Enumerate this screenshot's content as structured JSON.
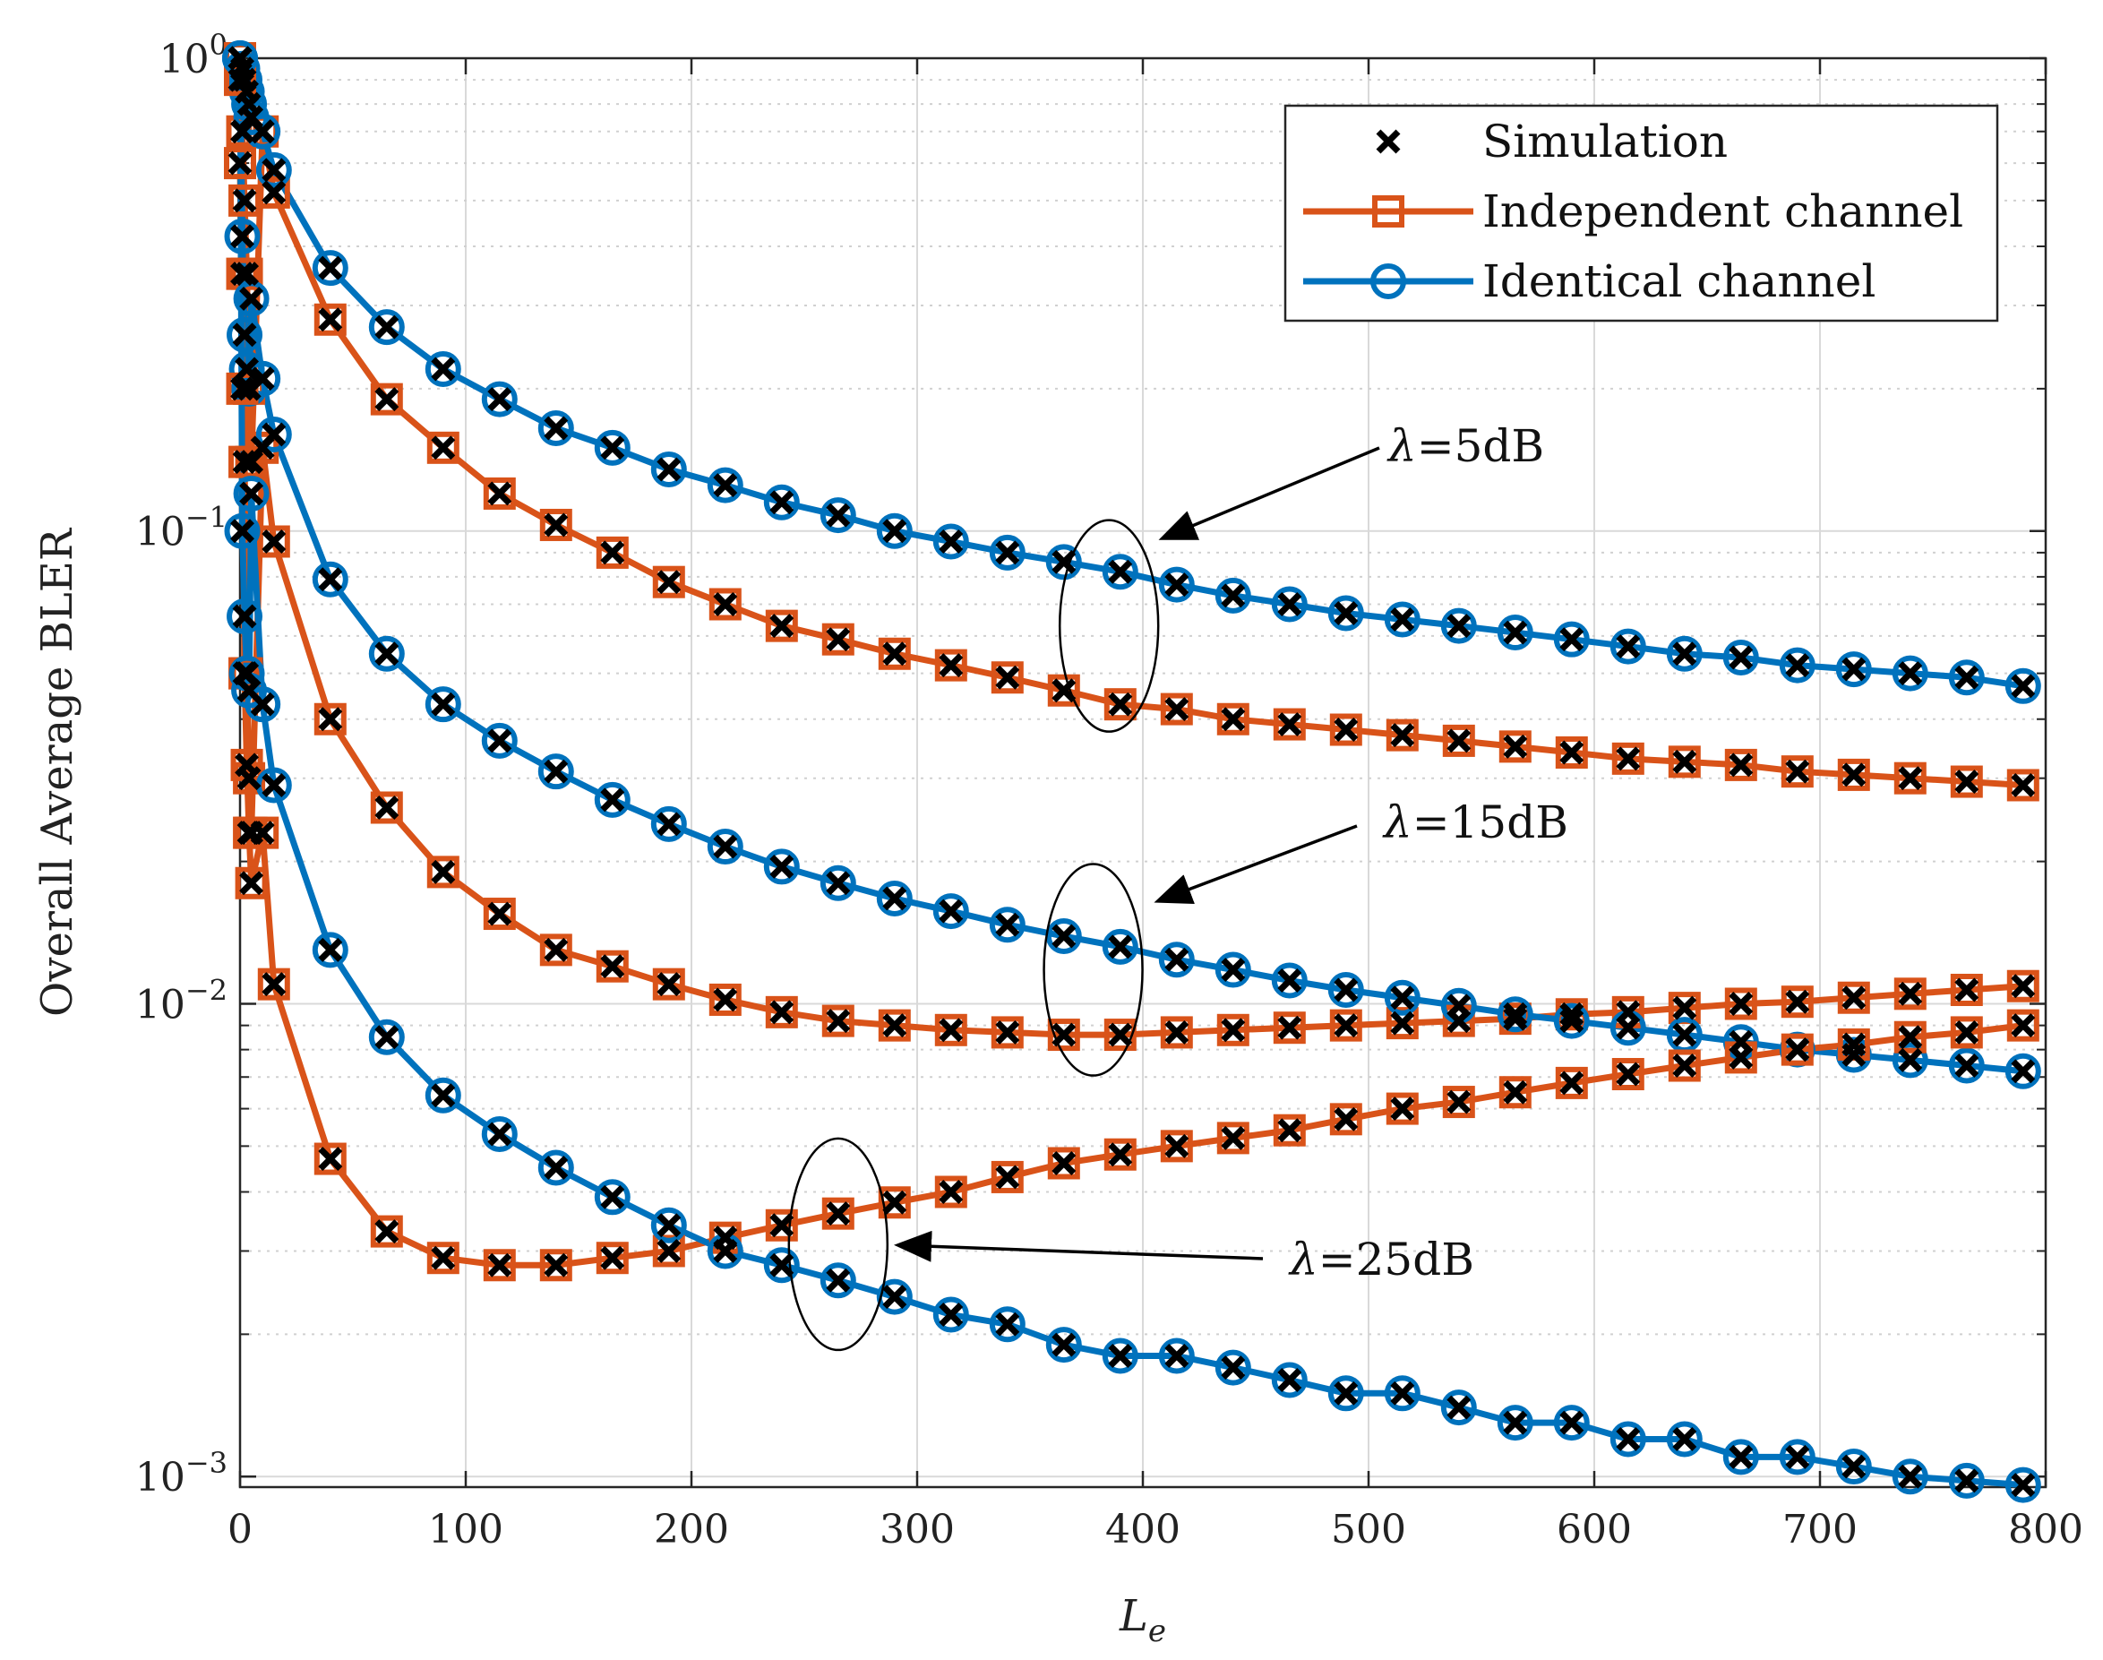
{
  "chart_data": {
    "type": "line",
    "title": "",
    "xlabel": "L",
    "xlabel_sub": "e",
    "ylabel": "Overall Average BLER",
    "xscale": "linear",
    "yscale": "log",
    "xlim": [
      0,
      800
    ],
    "ylim": [
      0.00095,
      1
    ],
    "x_ticks": [
      "0",
      "100",
      "200",
      "300",
      "400",
      "500",
      "600",
      "700",
      "800"
    ],
    "y_ticks": [
      {
        "base": "10",
        "exp": "0"
      },
      {
        "base": "10",
        "exp": "−1"
      },
      {
        "base": "10",
        "exp": "−2"
      },
      {
        "base": "10",
        "exp": "−3"
      }
    ],
    "grid": true,
    "legend_position": "top-right",
    "legend": [
      {
        "label": "Simulation",
        "marker": "x",
        "color": "#000000"
      },
      {
        "label": "Independent channel",
        "marker": "square",
        "color": "#D95319"
      },
      {
        "label": "Identical channel",
        "marker": "circle",
        "color": "#0072BD"
      }
    ],
    "colors": {
      "independent": "#D95319",
      "identical": "#0072BD",
      "simulation": "#000000"
    },
    "series": [
      {
        "name": "Independent channel λ=5dB",
        "kind": "independent",
        "x": [
          0,
          1,
          2,
          3,
          4,
          5,
          10,
          15,
          40,
          65,
          90,
          115,
          140,
          165,
          190,
          215,
          240,
          265,
          290,
          315,
          340,
          365,
          390,
          415,
          440,
          465,
          490,
          515,
          540,
          565,
          590,
          615,
          640,
          665,
          690,
          715,
          740,
          765,
          790
        ],
        "y": [
          1,
          0.7,
          0.5,
          0.35,
          0.2,
          0.14,
          0.7,
          0.52,
          0.28,
          0.19,
          0.15,
          0.12,
          0.103,
          0.09,
          0.078,
          0.07,
          0.063,
          0.059,
          0.055,
          0.052,
          0.049,
          0.046,
          0.043,
          0.042,
          0.04,
          0.039,
          0.038,
          0.037,
          0.036,
          0.035,
          0.034,
          0.033,
          0.0325,
          0.032,
          0.031,
          0.0305,
          0.03,
          0.0295,
          0.029
        ]
      },
      {
        "name": "Identical channel λ=5dB",
        "kind": "identical",
        "x": [
          0,
          1,
          2,
          3,
          4,
          5,
          10,
          15,
          40,
          65,
          90,
          115,
          140,
          165,
          190,
          215,
          240,
          265,
          290,
          315,
          340,
          365,
          390,
          415,
          440,
          465,
          490,
          515,
          540,
          565,
          590,
          615,
          640,
          665,
          690,
          715,
          740,
          765,
          790
        ],
        "y": [
          1,
          0.95,
          0.9,
          0.85,
          0.8,
          0.75,
          0.7,
          0.58,
          0.36,
          0.27,
          0.22,
          0.19,
          0.165,
          0.15,
          0.135,
          0.125,
          0.115,
          0.108,
          0.1,
          0.095,
          0.09,
          0.086,
          0.082,
          0.077,
          0.073,
          0.07,
          0.067,
          0.065,
          0.063,
          0.061,
          0.059,
          0.057,
          0.055,
          0.054,
          0.052,
          0.051,
          0.05,
          0.049,
          0.047
        ]
      },
      {
        "name": "Independent channel λ=15dB",
        "kind": "independent",
        "x": [
          0,
          1,
          2,
          3,
          4,
          5,
          10,
          15,
          40,
          65,
          90,
          115,
          140,
          165,
          190,
          215,
          240,
          265,
          290,
          315,
          340,
          365,
          390,
          415,
          440,
          465,
          490,
          515,
          540,
          565,
          590,
          615,
          640,
          665,
          690,
          715,
          740,
          765,
          790
        ],
        "y": [
          0.9,
          0.35,
          0.14,
          0.05,
          0.03,
          0.023,
          0.15,
          0.095,
          0.04,
          0.026,
          0.019,
          0.0155,
          0.013,
          0.012,
          0.011,
          0.0102,
          0.0096,
          0.0092,
          0.009,
          0.0088,
          0.0087,
          0.0086,
          0.0086,
          0.0087,
          0.0088,
          0.0089,
          0.009,
          0.0091,
          0.0092,
          0.0093,
          0.0095,
          0.0096,
          0.0098,
          0.01,
          0.0101,
          0.0103,
          0.0105,
          0.0107,
          0.0109
        ]
      },
      {
        "name": "Identical channel λ=15dB",
        "kind": "identical",
        "x": [
          0,
          1,
          2,
          3,
          4,
          5,
          10,
          15,
          40,
          65,
          90,
          115,
          140,
          165,
          190,
          215,
          240,
          265,
          290,
          315,
          340,
          365,
          390,
          415,
          440,
          465,
          490,
          515,
          540,
          565,
          590,
          615,
          640,
          665,
          690,
          715,
          740,
          765,
          790
        ],
        "y": [
          1,
          0.42,
          0.26,
          0.22,
          0.2,
          0.31,
          0.21,
          0.16,
          0.079,
          0.055,
          0.043,
          0.036,
          0.031,
          0.027,
          0.024,
          0.0215,
          0.0195,
          0.018,
          0.0167,
          0.0157,
          0.0147,
          0.0139,
          0.0132,
          0.0124,
          0.0118,
          0.0112,
          0.0107,
          0.0103,
          0.0099,
          0.0095,
          0.0092,
          0.0089,
          0.0086,
          0.0083,
          0.008,
          0.0078,
          0.0076,
          0.0074,
          0.0072
        ]
      },
      {
        "name": "Independent channel λ=25dB",
        "kind": "independent",
        "x": [
          0,
          1,
          2,
          3,
          4,
          5,
          10,
          15,
          40,
          65,
          90,
          115,
          140,
          165,
          190,
          215,
          240,
          265,
          290,
          315,
          340,
          365,
          390,
          415,
          440,
          465,
          490,
          515,
          540,
          565,
          590,
          615,
          640,
          665,
          690,
          715,
          740,
          765,
          790
        ],
        "y": [
          0.6,
          0.2,
          0.05,
          0.032,
          0.023,
          0.018,
          0.023,
          0.011,
          0.0047,
          0.0033,
          0.0029,
          0.0028,
          0.0028,
          0.0029,
          0.003,
          0.0032,
          0.0034,
          0.0036,
          0.0038,
          0.004,
          0.0043,
          0.0046,
          0.0048,
          0.005,
          0.0052,
          0.0054,
          0.0057,
          0.006,
          0.0062,
          0.0065,
          0.0068,
          0.0071,
          0.0074,
          0.0077,
          0.008,
          0.0082,
          0.0085,
          0.0087,
          0.009
        ]
      },
      {
        "name": "Identical channel λ=25dB",
        "kind": "identical",
        "x": [
          0,
          1,
          2,
          3,
          4,
          5,
          10,
          15,
          40,
          65,
          90,
          115,
          140,
          165,
          190,
          215,
          240,
          265,
          290,
          315,
          340,
          365,
          390,
          415,
          440,
          465,
          490,
          515,
          540,
          565,
          590,
          615,
          640,
          665,
          690,
          715,
          740,
          765,
          790
        ],
        "y": [
          1,
          0.1,
          0.066,
          0.05,
          0.046,
          0.12,
          0.043,
          0.029,
          0.013,
          0.0085,
          0.0064,
          0.0053,
          0.0045,
          0.0039,
          0.0034,
          0.003,
          0.0028,
          0.0026,
          0.0024,
          0.0022,
          0.0021,
          0.0019,
          0.0018,
          0.0018,
          0.0017,
          0.0016,
          0.0015,
          0.0015,
          0.0014,
          0.0013,
          0.0013,
          0.0012,
          0.0012,
          0.0011,
          0.0011,
          0.00105,
          0.001,
          0.00098,
          0.00096
        ]
      }
    ],
    "annotations": [
      {
        "label": "5dB",
        "symbol": "λ",
        "eq": "=",
        "x_data": 385,
        "y_data": 0.063
      },
      {
        "label": "15dB",
        "symbol": "λ",
        "eq": "=",
        "x_data": 378,
        "y_data": 0.0118
      },
      {
        "label": "25dB",
        "symbol": "λ",
        "eq": "=",
        "x_data": 265,
        "y_data": 0.0031
      }
    ]
  }
}
